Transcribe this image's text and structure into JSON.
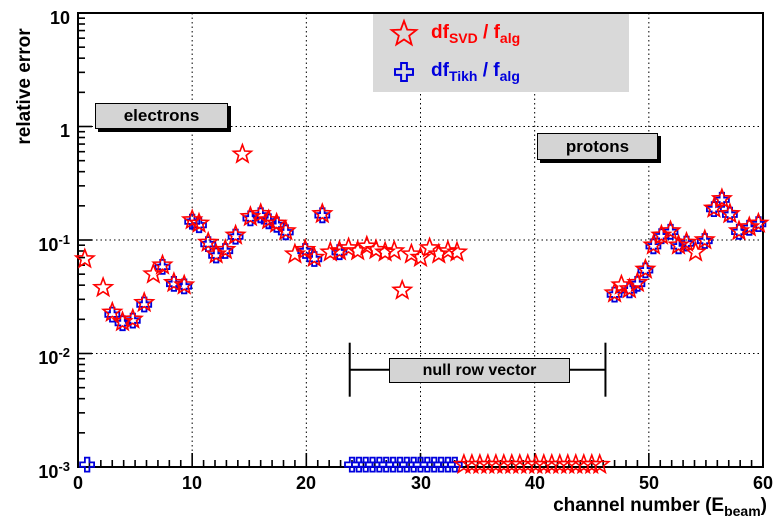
{
  "axes": {
    "y_title": "relative error",
    "x_title_pre": "channel number (E",
    "x_title_sub": "beam",
    "x_title_post": ")",
    "y_ticks": [
      {
        "b": "10",
        "e": ""
      },
      {
        "b": "1",
        "e": ""
      },
      {
        "b": "10",
        "e": "-1"
      },
      {
        "b": "10",
        "e": "-2"
      },
      {
        "b": "10",
        "e": "-3"
      }
    ],
    "x_ticks": [
      "0",
      "10",
      "20",
      "30",
      "40",
      "50",
      "60"
    ]
  },
  "legend": {
    "items": [
      {
        "p1": "df",
        "s1": "SVD",
        "p2": " / f",
        "s2": "alg",
        "marker": "open-star",
        "color": "#ff0000"
      },
      {
        "p1": "df",
        "s1": "Tikh",
        "p2": " / f",
        "s2": "alg",
        "marker": "open-cross",
        "color": "#0000dd"
      }
    ]
  },
  "annotations": {
    "electrons": "electrons",
    "protons": "protons",
    "null_row_label": "null row vector"
  },
  "chart_data": {
    "type": "scatter",
    "title": "",
    "xlabel": "channel number (E_beam)",
    "ylabel": "relative error",
    "x_range": [
      0,
      60
    ],
    "y_range": [
      0.001,
      10
    ],
    "y_scale": "log",
    "grid": "dotted",
    "legend_position": "top-center",
    "y_gridlines": [
      0.01,
      0.1,
      1
    ],
    "x_gridlines": [
      10,
      20,
      30,
      40,
      50
    ],
    "null_row_bracket": {
      "x_from": 23.8,
      "x_to": 46.2,
      "y": 0.0072
    },
    "series": [
      {
        "name": "df_Tikh / f_alg",
        "marker": "open-cross",
        "color": "#0000dd",
        "points": [
          [
            0.8,
            0.00105
          ],
          [
            3.0,
            0.022
          ],
          [
            3.9,
            0.0185
          ],
          [
            4.8,
            0.0195
          ],
          [
            5.8,
            0.027
          ],
          [
            7.4,
            0.058
          ],
          [
            8.4,
            0.041
          ],
          [
            9.3,
            0.039
          ],
          [
            10.0,
            0.145
          ],
          [
            10.6,
            0.135
          ],
          [
            11.4,
            0.092
          ],
          [
            12.1,
            0.073
          ],
          [
            12.9,
            0.08
          ],
          [
            13.8,
            0.107
          ],
          [
            15.1,
            0.155
          ],
          [
            16.0,
            0.165
          ],
          [
            16.7,
            0.146
          ],
          [
            17.4,
            0.136
          ],
          [
            18.2,
            0.117
          ],
          [
            19.9,
            0.08
          ],
          [
            20.7,
            0.068
          ],
          [
            21.4,
            0.165
          ],
          [
            22.9,
            0.078
          ],
          [
            24.0,
            0.00105
          ],
          [
            24.6,
            0.00105
          ],
          [
            25.2,
            0.00105
          ],
          [
            25.8,
            0.00105
          ],
          [
            26.4,
            0.00105
          ],
          [
            27.0,
            0.00105
          ],
          [
            27.6,
            0.00105
          ],
          [
            28.2,
            0.00105
          ],
          [
            28.8,
            0.00105
          ],
          [
            29.4,
            0.00105
          ],
          [
            30.0,
            0.00105
          ],
          [
            30.6,
            0.00105
          ],
          [
            31.2,
            0.00105
          ],
          [
            31.8,
            0.00105
          ],
          [
            32.4,
            0.00105
          ],
          [
            33.0,
            0.00105
          ],
          [
            47.0,
            0.033
          ],
          [
            48.3,
            0.036
          ],
          [
            49.0,
            0.041
          ],
          [
            49.7,
            0.054
          ],
          [
            50.4,
            0.088
          ],
          [
            51.1,
            0.108
          ],
          [
            51.9,
            0.118
          ],
          [
            52.6,
            0.088
          ],
          [
            53.3,
            0.093
          ],
          [
            54.9,
            0.098
          ],
          [
            55.7,
            0.187
          ],
          [
            56.4,
            0.226
          ],
          [
            57.1,
            0.167
          ],
          [
            57.9,
            0.118
          ],
          [
            58.8,
            0.128
          ],
          [
            59.6,
            0.138
          ]
        ]
      },
      {
        "name": "df_SVD / f_alg",
        "marker": "open-star",
        "color": "#ff0000",
        "points": [
          [
            0.6,
            0.068
          ],
          [
            2.2,
            0.038
          ],
          [
            3.0,
            0.023
          ],
          [
            3.9,
            0.019
          ],
          [
            4.8,
            0.02
          ],
          [
            5.8,
            0.028
          ],
          [
            6.6,
            0.05
          ],
          [
            7.4,
            0.06
          ],
          [
            8.4,
            0.042
          ],
          [
            9.3,
            0.04
          ],
          [
            10.0,
            0.15
          ],
          [
            10.6,
            0.14
          ],
          [
            11.4,
            0.095
          ],
          [
            12.1,
            0.075
          ],
          [
            12.9,
            0.082
          ],
          [
            13.8,
            0.11
          ],
          [
            14.4,
            0.57
          ],
          [
            15.1,
            0.16
          ],
          [
            16.0,
            0.17
          ],
          [
            16.7,
            0.15
          ],
          [
            17.4,
            0.14
          ],
          [
            18.2,
            0.12
          ],
          [
            19.0,
            0.075
          ],
          [
            19.9,
            0.082
          ],
          [
            20.7,
            0.07
          ],
          [
            21.4,
            0.17
          ],
          [
            22.1,
            0.078
          ],
          [
            22.9,
            0.08
          ],
          [
            23.7,
            0.085
          ],
          [
            24.5,
            0.08
          ],
          [
            25.3,
            0.088
          ],
          [
            26.1,
            0.082
          ],
          [
            26.9,
            0.078
          ],
          [
            27.7,
            0.08
          ],
          [
            28.4,
            0.036
          ],
          [
            29.2,
            0.075
          ],
          [
            30.0,
            0.07
          ],
          [
            30.8,
            0.085
          ],
          [
            31.6,
            0.075
          ],
          [
            32.4,
            0.08
          ],
          [
            33.2,
            0.078
          ],
          [
            33.8,
            0.00105
          ],
          [
            34.5,
            0.00105
          ],
          [
            35.2,
            0.00105
          ],
          [
            35.9,
            0.00105
          ],
          [
            36.6,
            0.00105
          ],
          [
            37.3,
            0.00105
          ],
          [
            38.0,
            0.00105
          ],
          [
            38.7,
            0.00105
          ],
          [
            39.4,
            0.00105
          ],
          [
            40.1,
            0.00105
          ],
          [
            40.8,
            0.00105
          ],
          [
            41.5,
            0.00105
          ],
          [
            42.2,
            0.00105
          ],
          [
            42.9,
            0.00105
          ],
          [
            43.6,
            0.00105
          ],
          [
            44.3,
            0.00105
          ],
          [
            45.0,
            0.00105
          ],
          [
            45.7,
            0.00105
          ],
          [
            47.0,
            0.034
          ],
          [
            47.6,
            0.04
          ],
          [
            48.3,
            0.037
          ],
          [
            49.0,
            0.042
          ],
          [
            49.7,
            0.055
          ],
          [
            50.4,
            0.09
          ],
          [
            51.1,
            0.11
          ],
          [
            51.9,
            0.12
          ],
          [
            52.6,
            0.09
          ],
          [
            53.3,
            0.095
          ],
          [
            54.1,
            0.078
          ],
          [
            54.9,
            0.1
          ],
          [
            55.7,
            0.19
          ],
          [
            56.4,
            0.23
          ],
          [
            57.1,
            0.17
          ],
          [
            57.9,
            0.12
          ],
          [
            58.8,
            0.13
          ],
          [
            59.6,
            0.14
          ]
        ]
      }
    ]
  }
}
